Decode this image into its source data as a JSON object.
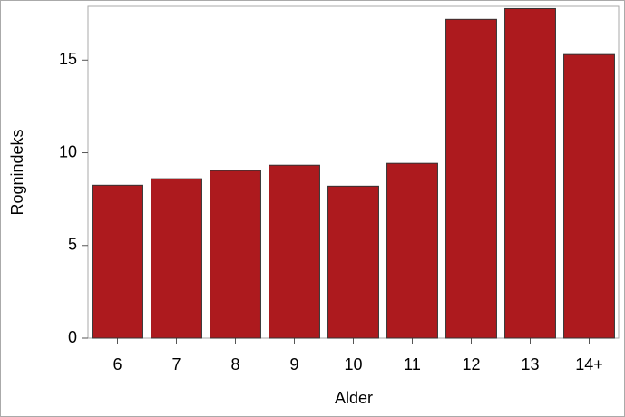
{
  "chart_data": {
    "type": "bar",
    "x_label": "Alder",
    "y_label": "Rognindeks",
    "categories": [
      "6",
      "7",
      "8",
      "9",
      "10",
      "11",
      "12",
      "13",
      "14+"
    ],
    "values": [
      8.25,
      8.6,
      9.04,
      9.33,
      8.2,
      9.43,
      17.2,
      17.78,
      15.3
    ],
    "color": "#ad1a1e",
    "ylim": [
      0,
      17.9
    ],
    "yticks": [
      0,
      5,
      10,
      15
    ]
  }
}
